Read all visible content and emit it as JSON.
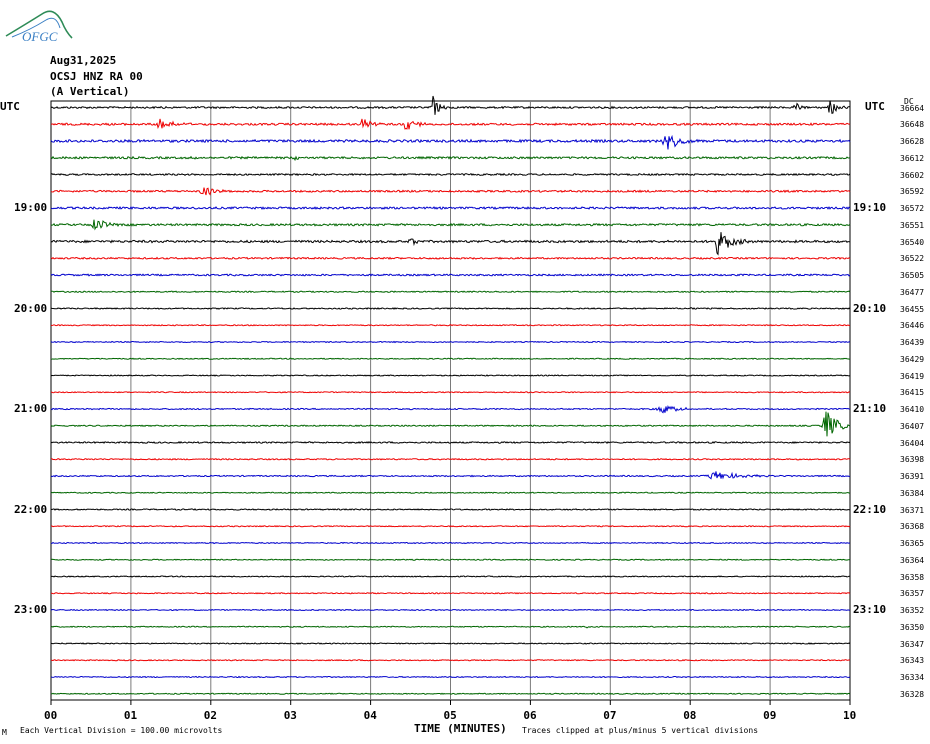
{
  "logo": {
    "text": "OFGC",
    "color": "#3a7fc4",
    "accent": "#2e8b57"
  },
  "header": {
    "date": "Aug31,2025",
    "station": "OCSJ HNZ RA 00",
    "component": "(A Vertical)",
    "left_tz": "UTC",
    "right_tz": "UTC",
    "dc_label": "DC"
  },
  "left_hours": [
    "19:00",
    "20:00",
    "21:00",
    "22:00",
    "23:00"
  ],
  "right_hours": [
    "19:10",
    "20:10",
    "21:10",
    "22:10",
    "23:10"
  ],
  "footer": {
    "scale": "Each Vertical Division =  100.00 microvolts",
    "xlabel": "TIME (MINUTES)",
    "clip_note": "Traces clipped at plus/minus 5 vertical divisions",
    "corner_mark": "M"
  },
  "chart_data": {
    "type": "line",
    "subtype": "helicorder",
    "xlabel": "TIME (MINUTES)",
    "x_range": [
      0,
      10
    ],
    "x_ticks": [
      "00",
      "01",
      "02",
      "03",
      "04",
      "05",
      "06",
      "07",
      "08",
      "09",
      "10"
    ],
    "trace_colors": [
      "#000000",
      "#ee0000",
      "#0000cc",
      "#006600"
    ],
    "grid": true,
    "dc_offsets": [
      36664,
      36648,
      36628,
      36612,
      36602,
      36592,
      36572,
      36551,
      36540,
      36522,
      36505,
      36477,
      36455,
      36446,
      36439,
      36429,
      36419,
      36415,
      36410,
      36407,
      36404,
      36398,
      36391,
      36384,
      36371,
      36368,
      36365,
      36364,
      36358,
      36357,
      36352,
      36350,
      36347,
      36343,
      36334,
      36328
    ],
    "noise_levels": [
      0.9,
      1.0,
      1.2,
      1.0,
      0.8,
      0.9,
      1.0,
      1.0,
      1.1,
      0.8,
      0.8,
      0.6,
      0.6,
      0.5,
      0.5,
      0.5,
      0.5,
      0.5,
      0.6,
      0.6,
      0.7,
      0.6,
      0.6,
      0.5,
      0.6,
      0.5,
      0.5,
      0.5,
      0.5,
      0.5,
      0.5,
      0.5,
      0.5,
      0.5,
      0.5,
      0.5
    ],
    "events": [
      {
        "trace": 0,
        "minute": 4.78,
        "amplitude": 12,
        "duration": 0.12
      },
      {
        "trace": 0,
        "minute": 9.32,
        "amplitude": 4,
        "duration": 0.1
      },
      {
        "trace": 0,
        "minute": 9.75,
        "amplitude": 10,
        "duration": 0.12
      },
      {
        "trace": 0,
        "minute": 1.35,
        "amplitude": 2,
        "duration": 0.05
      },
      {
        "trace": 1,
        "minute": 1.35,
        "amplitude": 7,
        "duration": 0.22
      },
      {
        "trace": 1,
        "minute": 3.9,
        "amplitude": 6,
        "duration": 0.15
      },
      {
        "trace": 1,
        "minute": 4.45,
        "amplitude": 8,
        "duration": 0.18
      },
      {
        "trace": 2,
        "minute": 7.7,
        "amplitude": 11,
        "duration": 0.2
      },
      {
        "trace": 3,
        "minute": 1.75,
        "amplitude": 2,
        "duration": 0.1
      },
      {
        "trace": 3,
        "minute": 3.05,
        "amplitude": 2,
        "duration": 0.1
      },
      {
        "trace": 5,
        "minute": 1.9,
        "amplitude": 6,
        "duration": 0.2
      },
      {
        "trace": 7,
        "minute": 0.55,
        "amplitude": 7,
        "duration": 0.2
      },
      {
        "trace": 8,
        "minute": 4.5,
        "amplitude": 4,
        "duration": 0.1
      },
      {
        "trace": 8,
        "minute": 8.35,
        "amplitude": 14,
        "duration": 0.22
      },
      {
        "trace": 12,
        "minute": 8.0,
        "amplitude": 1.5,
        "duration": 0.05
      },
      {
        "trace": 18,
        "minute": 7.65,
        "amplitude": 5,
        "duration": 0.28
      },
      {
        "trace": 19,
        "minute": 9.7,
        "amplitude": 17,
        "duration": 0.2
      },
      {
        "trace": 22,
        "minute": 8.3,
        "amplitude": 5,
        "duration": 0.45
      },
      {
        "trace": 31,
        "minute": 6.7,
        "amplitude": 2,
        "duration": 0.03
      }
    ]
  }
}
